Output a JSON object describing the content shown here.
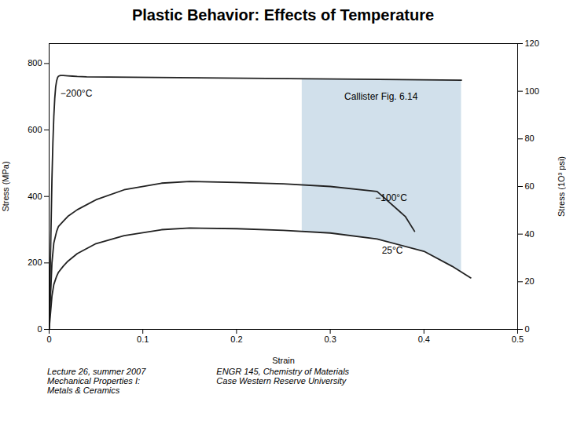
{
  "chart_data": {
    "type": "line",
    "title": "Plastic Behavior: Effects of Temperature",
    "xlabel": "Strain",
    "ylabel": "Stress (MPa)",
    "y2label": "Stress (1O³ psi)",
    "xlim": [
      0,
      0.5
    ],
    "ylim": [
      0,
      860
    ],
    "y2lim": [
      0,
      120
    ],
    "xticks": [
      0,
      0.1,
      0.2,
      0.3,
      0.4,
      0.5
    ],
    "yticks": [
      0,
      200,
      400,
      600,
      800
    ],
    "y2ticks": [
      0,
      20,
      40,
      60,
      80,
      100,
      120
    ],
    "grid": false,
    "series": [
      {
        "name": "−200°C",
        "color": "#222222",
        "label_x": 0.012,
        "label_y": 710,
        "x": [
          0,
          0.002,
          0.003,
          0.004,
          0.005,
          0.006,
          0.007,
          0.008,
          0.009,
          0.01,
          0.012,
          0.015,
          0.02,
          0.025,
          0.03,
          0.04,
          0.44
        ],
        "values": [
          0,
          300,
          450,
          560,
          640,
          695,
          730,
          748,
          758,
          762,
          764,
          764,
          763,
          762,
          761,
          760,
          750
        ]
      },
      {
        "name": "−100°C",
        "color": "#222222",
        "label_x": 0.348,
        "label_y": 395,
        "x": [
          0,
          0.003,
          0.005,
          0.008,
          0.01,
          0.015,
          0.02,
          0.03,
          0.05,
          0.08,
          0.12,
          0.15,
          0.2,
          0.25,
          0.3,
          0.35,
          0.38,
          0.39
        ],
        "values": [
          0,
          200,
          260,
          295,
          310,
          325,
          340,
          360,
          390,
          420,
          440,
          445,
          442,
          438,
          430,
          415,
          340,
          295
        ]
      },
      {
        "name": "25°C",
        "color": "#222222",
        "label_x": 0.355,
        "label_y": 237,
        "x": [
          0,
          0.003,
          0.005,
          0.008,
          0.01,
          0.015,
          0.02,
          0.03,
          0.05,
          0.08,
          0.12,
          0.15,
          0.2,
          0.25,
          0.3,
          0.35,
          0.4,
          0.43,
          0.45
        ],
        "values": [
          0,
          100,
          135,
          160,
          172,
          190,
          205,
          228,
          258,
          282,
          300,
          305,
          303,
          298,
          290,
          272,
          235,
          190,
          155
        ]
      }
    ],
    "shaded": {
      "between": [
        "−200°C",
        "25°C"
      ],
      "x": [
        0.27,
        0.44
      ],
      "color": "#b8cfe0"
    },
    "annotations": [
      {
        "text": "Callister Fig. 6.14",
        "x": 0.315,
        "y": 700
      }
    ],
    "footnotes": [
      "Lecture 26, summer 2007\nMechanical Properties I:\nMetals & Ceramics",
      "ENGR 145, Chemistry of Materials\nCase Western Reserve University"
    ]
  }
}
